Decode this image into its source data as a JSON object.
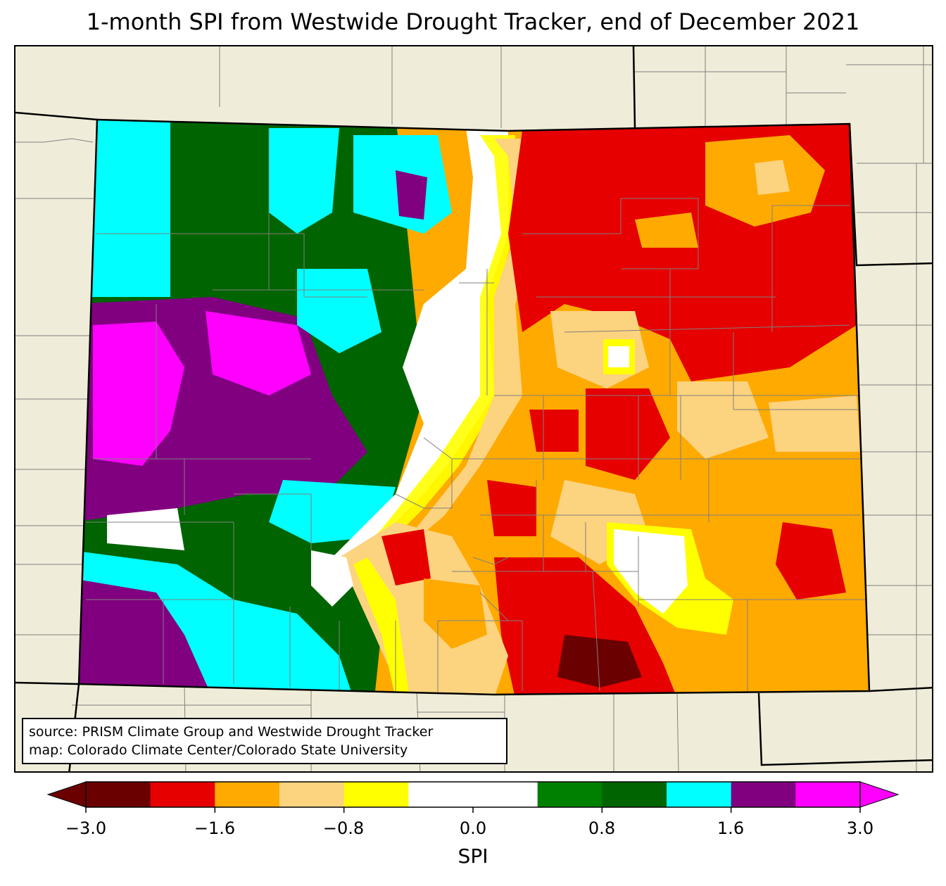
{
  "title": "1-month SPI from Westwide Drought Tracker, end of December 2021",
  "source_line1": "source: PRISM Climate Group and Westwide Drought Tracker",
  "source_line2": "map: Colorado Climate Center/Colorado State University",
  "colorbar": {
    "label": "SPI",
    "tick_labels": [
      "−3.0",
      "−1.6",
      "−0.8",
      "0.0",
      "0.8",
      "1.6",
      "3.0"
    ],
    "under_color": "#6b0000",
    "over_color": "#ff00ff",
    "colors": [
      "#6b0000",
      "#e60000",
      "#ffaa00",
      "#fcd37f",
      "#ffff00",
      "#ffffff",
      "#ffffff",
      "#008000",
      "#006400",
      "#00ffff",
      "#800080",
      "#ff00ff"
    ]
  },
  "colors": {
    "background": "#efedd9",
    "state_outline": "#000000",
    "county_lines": "#808080"
  }
}
